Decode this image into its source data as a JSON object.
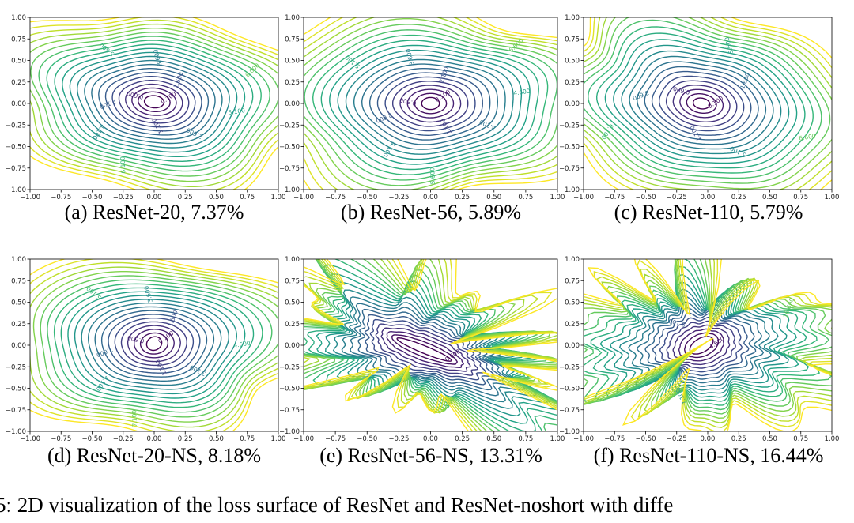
{
  "figure_caption": "5: 2D visualization of the loss surface of ResNet and ResNet-noshort with diffe",
  "chart_data": [
    {
      "type": "contour",
      "caption": "(a) ResNet-20, 7.37%",
      "xlim": [
        -1,
        1
      ],
      "ylim": [
        -1,
        1
      ],
      "xticks": [
        "−1.00",
        "−0.75",
        "−0.50",
        "−0.25",
        "0.00",
        "0.25",
        "0.50",
        "0.75",
        "1.00"
      ],
      "yticks": [
        "1.00",
        "0.75",
        "0.50",
        "0.25",
        "0.00",
        "−0.25",
        "−0.50",
        "−0.75",
        "−1.00"
      ],
      "contour_labels": [
        "0.100",
        "0.600",
        "1.100",
        "1.600",
        "2.100",
        "2.600",
        "3.600",
        "4.100",
        "5.100",
        "5.600",
        "6.100",
        "6.600"
      ],
      "colormap": "viridis"
    },
    {
      "type": "contour",
      "caption": "(b) ResNet-56, 5.89%",
      "xlim": [
        -1,
        1
      ],
      "ylim": [
        -1,
        1
      ],
      "xticks": [
        "−1.00",
        "−0.75",
        "−0.50",
        "−0.25",
        "0.00",
        "0.25",
        "0.50",
        "0.75",
        "1.00"
      ],
      "yticks": [
        "1.00",
        "0.75",
        "0.50",
        "0.25",
        "0.00",
        "−0.25",
        "−0.50",
        "−0.75",
        "−1.00"
      ],
      "contour_labels": [
        "0.100",
        "0.600",
        "1.100",
        "2.100",
        "2.600",
        "3.100",
        "3.600",
        "4.100",
        "4.600",
        "5.100",
        "5.600",
        "6.600"
      ],
      "colormap": "viridis"
    },
    {
      "type": "contour",
      "caption": "(c) ResNet-110, 5.79%",
      "xlim": [
        -1,
        1
      ],
      "ylim": [
        -1,
        1
      ],
      "xticks": [
        "−1.00",
        "−0.75",
        "−0.50",
        "−0.25",
        "0.00",
        "0.25",
        "0.50",
        "0.75",
        "1.00"
      ],
      "yticks": [
        "1.00",
        "0.75",
        "0.50",
        "0.25",
        "0.00",
        "−0.25",
        "−0.50",
        "−0.75",
        "−1.00"
      ],
      "contour_labels": [
        "0.100",
        "0.600",
        "1.100",
        "1.600",
        "3.600",
        "5.100",
        "5.600",
        "6.100",
        "6.600"
      ],
      "colormap": "viridis"
    },
    {
      "type": "contour",
      "caption": "(d) ResNet-20-NS, 8.18%",
      "xlim": [
        -1,
        1
      ],
      "ylim": [
        -1,
        1
      ],
      "xticks": [
        "−1.00",
        "−0.75",
        "−0.50",
        "−0.25",
        "0.00",
        "0.25",
        "0.50",
        "0.75",
        "1.00"
      ],
      "yticks": [
        "1.00",
        "0.75",
        "0.50",
        "0.25",
        "0.00",
        "−0.25",
        "−0.50",
        "−0.75",
        "−1.00"
      ],
      "contour_labels": [
        "0.100",
        "0.600",
        "1.100",
        "1.600",
        "2.600",
        "3.100",
        "3.600",
        "4.100",
        "4.600",
        "5.100",
        "7.100"
      ],
      "colormap": "viridis"
    },
    {
      "type": "contour",
      "caption": "(e) ResNet-56-NS, 13.31%",
      "xlim": [
        -1,
        1
      ],
      "ylim": [
        -1,
        1
      ],
      "xticks": [
        "−1.00",
        "−0.75",
        "−0.50",
        "−0.25",
        "0.00",
        "0.25",
        "0.50",
        "0.75",
        "1.00"
      ],
      "yticks": [
        "1.00",
        "0.75",
        "0.50",
        "0.25",
        "0.00",
        "−0.25",
        "−0.50",
        "−0.75",
        "−1.00"
      ],
      "contour_labels": [
        "0.600"
      ],
      "colormap": "viridis"
    },
    {
      "type": "contour",
      "caption": "(f) ResNet-110-NS, 16.44%",
      "xlim": [
        -1,
        1
      ],
      "ylim": [
        -1,
        1
      ],
      "xticks": [
        "−1.00",
        "−0.75",
        "−0.50",
        "−0.25",
        "0.00",
        "0.25",
        "0.50",
        "0.75",
        "1.00"
      ],
      "yticks": [
        "1.00",
        "0.75",
        "0.50",
        "0.25",
        "0.00",
        "−0.25",
        "−0.50",
        "−0.75",
        "−1.00"
      ],
      "contour_labels": [
        "4.600",
        "5.100",
        "7.100",
        "16.600"
      ],
      "colormap": "viridis"
    }
  ]
}
